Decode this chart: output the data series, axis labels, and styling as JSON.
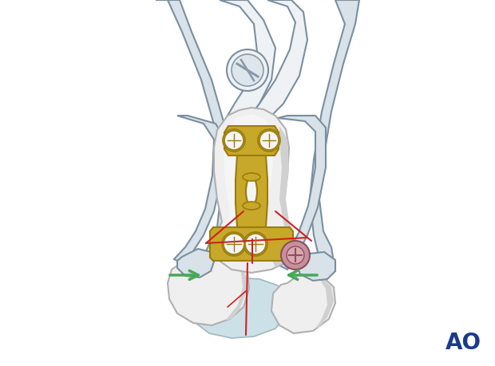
{
  "bg_color": "#ffffff",
  "bone_color": "#efefef",
  "bone_light": "#f5f5f5",
  "bone_shadow": "#d0d0d0",
  "bone_outline": "#b0b0b0",
  "plate_color": "#c8a828",
  "plate_dark": "#9a7c10",
  "plate_light": "#e0c050",
  "clamp_fill": "#d8e2e8",
  "clamp_light": "#eef2f5",
  "clamp_outline": "#7a8fa0",
  "clamp_dark": "#8898a8",
  "fracture_color": "#cc2222",
  "arrow_color": "#44aa55",
  "ao_color": "#1a3a8a",
  "screw_fill": "#c8909a",
  "screw_dark": "#8a5060",
  "carpal_fill": "#cce0e8",
  "carpal_outline": "#a0b8c0",
  "title": "AO",
  "title_fontsize": 20
}
